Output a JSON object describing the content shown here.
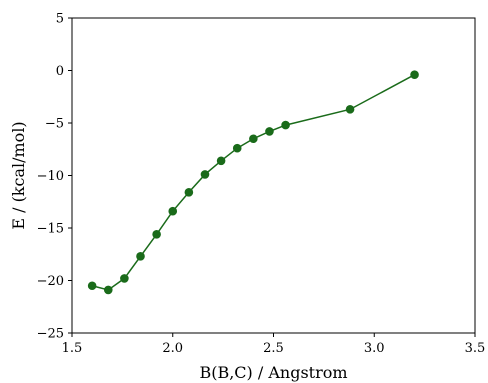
{
  "chart_data": {
    "type": "line",
    "title": "",
    "xlabel": "B(B,C) / Angstrom",
    "ylabel": "E / (kcal/mol)",
    "xlim": [
      1.5,
      3.5
    ],
    "ylim": [
      -25,
      5
    ],
    "x_ticks": [
      "1.5",
      "2.0",
      "2.5",
      "3.0",
      "3.5"
    ],
    "y_ticks": [
      "−25",
      "−20",
      "−15",
      "−10",
      "−5",
      "0",
      "5"
    ],
    "grid": false,
    "legend": "none",
    "series": [
      {
        "color": "#1a6b1a",
        "marker": "circle",
        "x": [
          1.6,
          1.68,
          1.76,
          1.84,
          1.92,
          2.0,
          2.08,
          2.16,
          2.24,
          2.32,
          2.4,
          2.48,
          2.56,
          2.88,
          3.2
        ],
        "y": [
          -20.5,
          -20.9,
          -19.8,
          -17.7,
          -15.6,
          -13.4,
          -11.6,
          -9.9,
          -8.6,
          -7.4,
          -6.5,
          -5.8,
          -5.2,
          -3.7,
          -0.4
        ]
      }
    ]
  }
}
